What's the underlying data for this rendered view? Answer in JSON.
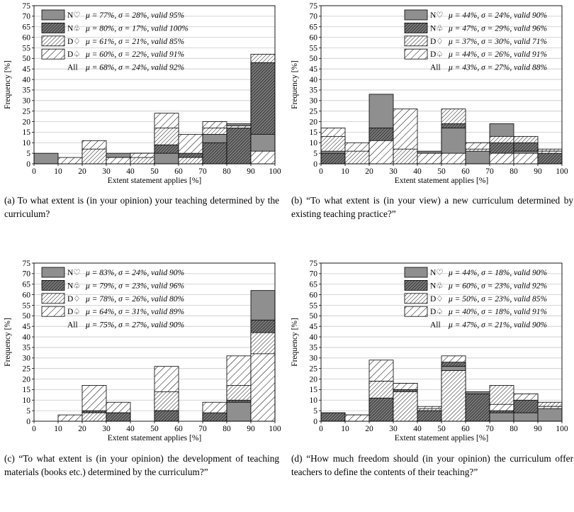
{
  "chart_data": [
    {
      "id": "a",
      "type": "bar",
      "caption_label": "(a)",
      "caption": "To what extent is (in your opinion) your teaching determined by the curriculum?",
      "xlabel": "Extent statement applies [%]",
      "ylabel": "Frequency [%]",
      "xlim": [
        0,
        100
      ],
      "ylim": [
        0,
        75
      ],
      "xticks": [
        "0",
        "10",
        "20",
        "30",
        "40",
        "50",
        "60",
        "70",
        "80",
        "90",
        "100"
      ],
      "yticks": [
        "0",
        "5",
        "10",
        "15",
        "20",
        "25",
        "30",
        "35",
        "40",
        "45",
        "50",
        "55",
        "60",
        "65",
        "70",
        "75"
      ],
      "bins": [
        "0-10",
        "10-20",
        "20-30",
        "30-40",
        "40-50",
        "50-60",
        "60-70",
        "70-80",
        "80-90",
        "90-100"
      ],
      "stacked": false,
      "series": [
        {
          "name": "N♡",
          "stats": "μ = 77%, σ = 28%, valid 95%",
          "values": [
            5,
            0,
            0,
            5,
            5,
            5,
            0,
            14,
            19,
            14
          ]
        },
        {
          "name": "N♧",
          "stats": "μ = 80%, σ = 17%, valid 100%",
          "values": [
            0,
            0,
            0,
            0,
            5,
            9,
            5,
            10,
            17,
            48
          ]
        },
        {
          "name": "D♢",
          "stats": "μ = 61%, σ = 21%, valid 85%",
          "values": [
            0,
            0,
            7,
            3,
            3,
            17,
            3,
            17,
            18,
            52
          ]
        },
        {
          "name": "D♤",
          "stats": "μ = 60%, σ = 22%, valid 91%",
          "values": [
            0,
            3,
            11,
            3,
            5,
            24,
            14,
            20,
            18,
            6
          ]
        }
      ],
      "all": {
        "name": "All",
        "stats": "μ = 68%, σ = 24%, valid 92%"
      }
    },
    {
      "id": "b",
      "type": "bar",
      "caption_label": "(b)",
      "caption": "“To what extent is (in your view) a new curriculum determined by existing teaching practice?”",
      "xlabel": "Extent statement applies [%]",
      "ylabel": "Frequency [%]",
      "xlim": [
        0,
        100
      ],
      "ylim": [
        0,
        75
      ],
      "xticks": [
        "0",
        "10",
        "20",
        "30",
        "40",
        "50",
        "60",
        "70",
        "80",
        "90",
        "100"
      ],
      "yticks": [
        "0",
        "5",
        "10",
        "15",
        "20",
        "25",
        "30",
        "35",
        "40",
        "45",
        "50",
        "55",
        "60",
        "65",
        "70",
        "75"
      ],
      "bins": [
        "0-10",
        "10-20",
        "20-30",
        "30-40",
        "40-50",
        "50-60",
        "60-70",
        "70-80",
        "80-90",
        "90-100"
      ],
      "stacked": false,
      "series": [
        {
          "name": "N♡",
          "stats": "μ = 44%, σ = 24%, valid 90%",
          "values": [
            6,
            0,
            33,
            0,
            6,
            17,
            6,
            19,
            6,
            6
          ]
        },
        {
          "name": "N♧",
          "stats": "μ = 47%, σ = 29%, valid 96%",
          "values": [
            5,
            0,
            17,
            0,
            5,
            19,
            10,
            10,
            10,
            5
          ]
        },
        {
          "name": "D♢",
          "stats": "μ = 37%, σ = 30%, valid 71%",
          "values": [
            13,
            6,
            0,
            7,
            0,
            26,
            7,
            13,
            13,
            7
          ]
        },
        {
          "name": "D♤",
          "stats": "μ = 44%, σ = 26%, valid 91%",
          "values": [
            17,
            10,
            11,
            26,
            5,
            5,
            10,
            5,
            5,
            6
          ]
        }
      ],
      "all": {
        "name": "All",
        "stats": "μ = 43%, σ = 27%, valid 88%"
      }
    },
    {
      "id": "c",
      "type": "bar",
      "caption_label": "(c)",
      "caption": "“To what extent is (in your opinion) the development of teaching materials (books etc.) determined by the curriculum?”",
      "xlabel": "Extent statement applies [%]",
      "ylabel": "Frequency [%]",
      "xlim": [
        0,
        100
      ],
      "ylim": [
        0,
        75
      ],
      "xticks": [
        "0",
        "10",
        "20",
        "30",
        "40",
        "50",
        "60",
        "70",
        "80",
        "90",
        "100"
      ],
      "yticks": [
        "0",
        "5",
        "10",
        "15",
        "20",
        "25",
        "30",
        "35",
        "40",
        "45",
        "50",
        "55",
        "60",
        "65",
        "70",
        "75"
      ],
      "bins": [
        "0-10",
        "10-20",
        "20-30",
        "30-40",
        "40-50",
        "50-60",
        "60-70",
        "70-80",
        "80-90",
        "90-100"
      ],
      "stacked": false,
      "series": [
        {
          "name": "N♡",
          "stats": "μ = 83%, σ = 24%, valid 90%",
          "values": [
            0,
            0,
            4,
            4,
            0,
            5,
            0,
            0,
            9,
            62
          ]
        },
        {
          "name": "N♧",
          "stats": "μ = 79%, σ = 23%, valid 96%",
          "values": [
            0,
            0,
            5,
            4,
            0,
            5,
            0,
            4,
            10,
            48
          ]
        },
        {
          "name": "D♢",
          "stats": "μ = 78%, σ = 26%, valid 80%",
          "values": [
            0,
            0,
            4,
            0,
            0,
            14,
            0,
            0,
            17,
            42
          ]
        },
        {
          "name": "D♤",
          "stats": "μ = 64%, σ = 31%, valid 89%",
          "values": [
            0,
            3,
            17,
            9,
            0,
            26,
            0,
            9,
            31,
            32
          ]
        }
      ],
      "all": {
        "name": "All",
        "stats": "μ = 75%, σ = 27%, valid 90%"
      }
    },
    {
      "id": "d",
      "type": "bar",
      "caption_label": "(d)",
      "caption": "“How much freedom should (in your opinion) the curriculum offer teachers to define the contents of their teaching?”",
      "xlabel": "Extent statement applies [%]",
      "ylabel": "Frequency [%]",
      "xlim": [
        0,
        100
      ],
      "ylim": [
        0,
        75
      ],
      "xticks": [
        "0",
        "10",
        "20",
        "30",
        "40",
        "50",
        "60",
        "70",
        "80",
        "90",
        "100"
      ],
      "yticks": [
        "0",
        "5",
        "10",
        "15",
        "20",
        "25",
        "30",
        "35",
        "40",
        "45",
        "50",
        "55",
        "60",
        "65",
        "70",
        "75"
      ],
      "bins": [
        "0-10",
        "10-20",
        "20-30",
        "30-40",
        "40-50",
        "50-60",
        "60-70",
        "70-80",
        "80-90",
        "90-100"
      ],
      "stacked": false,
      "series": [
        {
          "name": "N♡",
          "stats": "μ = 44%, σ = 18%, valid 90%",
          "values": [
            4,
            0,
            19,
            18,
            5,
            26,
            14,
            4,
            4,
            6
          ]
        },
        {
          "name": "N♧",
          "stats": "μ = 60%, σ = 23%, valid 92%",
          "values": [
            4,
            0,
            11,
            15,
            5,
            28,
            13,
            5,
            10,
            7
          ]
        },
        {
          "name": "D♢",
          "stats": "μ = 50%, σ = 23%, valid 85%",
          "values": [
            0,
            3,
            19,
            14,
            6,
            24,
            0,
            17,
            13,
            9
          ]
        },
        {
          "name": "D♤",
          "stats": "μ = 40%, σ = 18%, valid 91%",
          "values": [
            0,
            3,
            29,
            18,
            7,
            31,
            0,
            8,
            13,
            7
          ]
        }
      ],
      "all": {
        "name": "All",
        "stats": "μ = 47%, σ = 21%, valid 90%"
      }
    }
  ],
  "colors": {
    "N♡": "#8f8f8f",
    "N♧": "#555555",
    "D♢": "#ffffff",
    "D♤": "#ffffff",
    "grid": "#c8c8c8",
    "border": "#000000"
  },
  "patterns": {
    "N♡": "solid-gray",
    "N♧": "dense-diagonal",
    "D♢": "medium-diagonal",
    "D♤": "sparse-diagonal"
  }
}
